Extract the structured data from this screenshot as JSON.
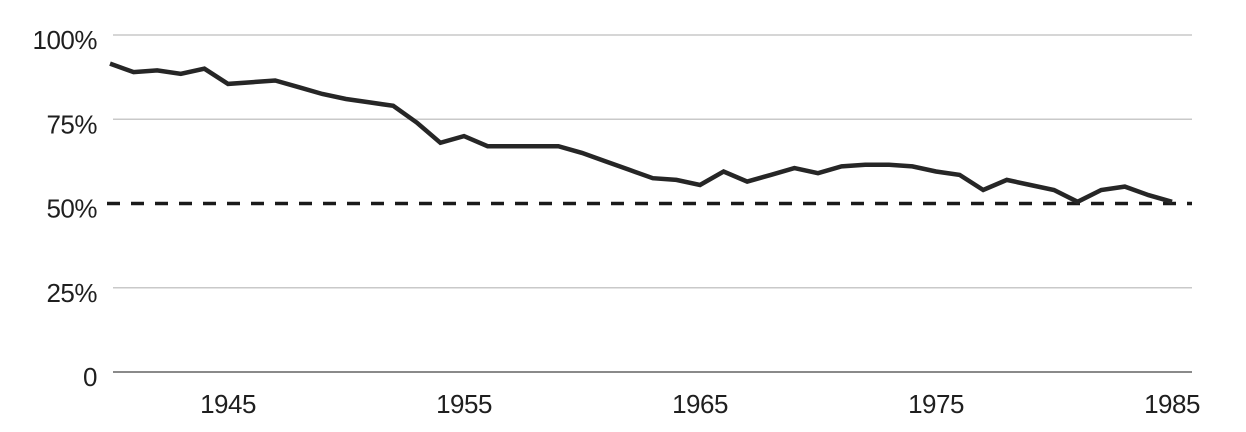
{
  "chart": {
    "background": "#ffffff"
  },
  "chart_data": {
    "type": "line",
    "title": "",
    "xlabel": "",
    "ylabel": "",
    "legend": "none",
    "grid": {
      "show": true,
      "orientation": "horizontal",
      "color": "#c9c9c9",
      "baseline_color": "#8a8a8a"
    },
    "ylim": [
      0,
      100
    ],
    "xlim": [
      1940,
      1986
    ],
    "y_ticks": [
      {
        "value": 100,
        "label": "100%"
      },
      {
        "value": 75,
        "label": "75%"
      },
      {
        "value": 50,
        "label": "50%"
      },
      {
        "value": 25,
        "label": "25%"
      },
      {
        "value": 0,
        "label": "0"
      }
    ],
    "x_ticks": [
      {
        "value": 1945,
        "label": "1945"
      },
      {
        "value": 1955,
        "label": "1955"
      },
      {
        "value": 1965,
        "label": "1965"
      },
      {
        "value": 1975,
        "label": "1975"
      },
      {
        "value": 1985,
        "label": "1985"
      }
    ],
    "reference_line": {
      "value": 50,
      "style": "dashed",
      "color": "#1a1a1a"
    },
    "label_color": "#1f1f1f",
    "x": [
      1940,
      1941,
      1942,
      1943,
      1944,
      1945,
      1946,
      1947,
      1948,
      1949,
      1950,
      1951,
      1952,
      1953,
      1954,
      1955,
      1956,
      1957,
      1958,
      1959,
      1960,
      1961,
      1962,
      1963,
      1964,
      1965,
      1966,
      1967,
      1968,
      1969,
      1970,
      1971,
      1972,
      1973,
      1974,
      1975,
      1976,
      1977,
      1978,
      1979,
      1980,
      1981,
      1982,
      1983,
      1984,
      1985
    ],
    "series": [
      {
        "name": "percent",
        "color": "#262626",
        "values": [
          91.5,
          89,
          89.5,
          88.5,
          90,
          85.5,
          86,
          86.5,
          84.5,
          82.5,
          81,
          80,
          79,
          74,
          68,
          70,
          67,
          67,
          67,
          67,
          65,
          62.5,
          60,
          57.5,
          57,
          55.5,
          59.5,
          56.5,
          58.5,
          60.5,
          59,
          61,
          61.5,
          61.5,
          61,
          59.5,
          58.5,
          54,
          57,
          55.5,
          54,
          50.5,
          54,
          55,
          52.5,
          50.5
        ]
      }
    ]
  }
}
